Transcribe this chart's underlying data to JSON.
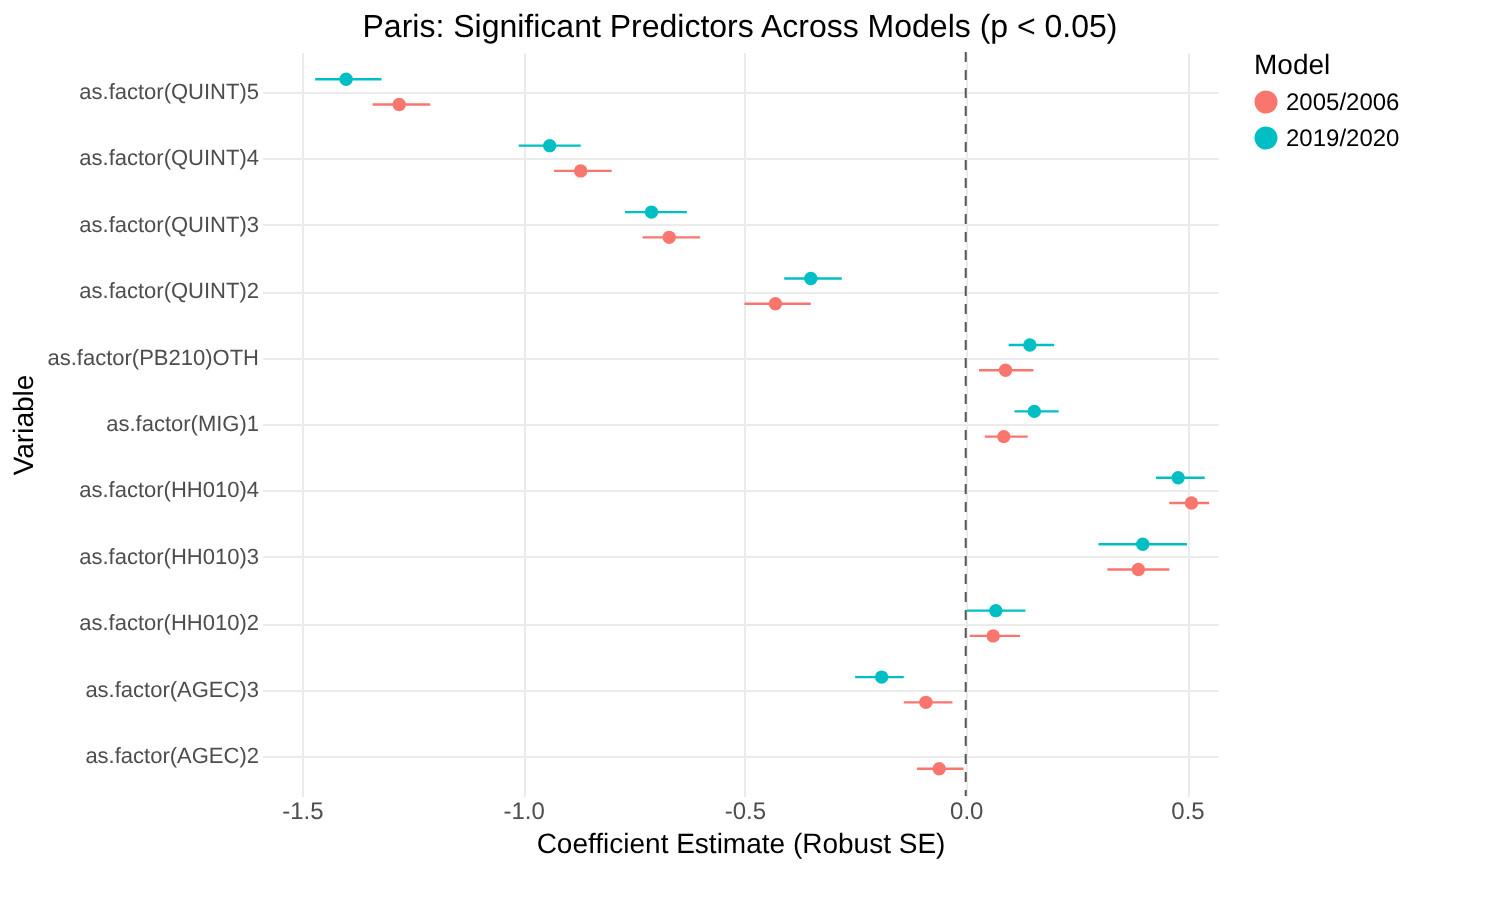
{
  "chart_data": {
    "type": "scatter",
    "title": "Paris: Significant Predictors Across Models (p < 0.05)",
    "xlabel": "Coefficient Estimate (Robust SE)",
    "ylabel": "Variable",
    "legend_title": "Model",
    "orientation": "horizontal",
    "categories": [
      "as.factor(QUINT)5",
      "as.factor(QUINT)4",
      "as.factor(QUINT)3",
      "as.factor(QUINT)2",
      "as.factor(PB210)OTH",
      "as.factor(MIG)1",
      "as.factor(HH010)4",
      "as.factor(HH010)3",
      "as.factor(HH010)2",
      "as.factor(AGEC)3",
      "as.factor(AGEC)2"
    ],
    "series": [
      {
        "name": "2005/2006",
        "color": "#f8766d",
        "values": [
          -1.28,
          -0.87,
          -0.67,
          -0.43,
          0.09,
          0.086,
          0.51,
          0.39,
          0.062,
          -0.09,
          -0.06
        ],
        "errors": [
          [
            -1.34,
            -1.21
          ],
          [
            -0.93,
            -0.8
          ],
          [
            -0.73,
            -0.6
          ],
          [
            -0.5,
            -0.35
          ],
          [
            0.03,
            0.153
          ],
          [
            0.043,
            0.14
          ],
          [
            0.46,
            0.55
          ],
          [
            0.32,
            0.46
          ],
          [
            0.009,
            0.123
          ],
          [
            -0.14,
            -0.03
          ],
          [
            -0.11,
            -0.005
          ]
        ]
      },
      {
        "name": "2019/2020",
        "color": "#00bfc4",
        "values": [
          -1.4,
          -0.94,
          -0.71,
          -0.35,
          0.145,
          0.155,
          0.48,
          0.4,
          0.068,
          -0.19,
          null
        ],
        "errors": [
          [
            -1.47,
            -1.32
          ],
          [
            -1.01,
            -0.87
          ],
          [
            -0.77,
            -0.63
          ],
          [
            -0.41,
            -0.28
          ],
          [
            0.097,
            0.2
          ],
          [
            0.11,
            0.21
          ],
          [
            0.43,
            0.54
          ],
          [
            0.3,
            0.5
          ],
          [
            0.003,
            0.135
          ],
          [
            -0.25,
            -0.14
          ],
          null
        ]
      }
    ],
    "xlim": [
      -1.59,
      0.57
    ],
    "xticks": [
      {
        "value": -1.5,
        "label": "-1.5"
      },
      {
        "value": -1,
        "label": "-1.0"
      },
      {
        "value": -0.5,
        "label": "-0.5"
      },
      {
        "value": 0,
        "label": "0.0"
      },
      {
        "value": 0.5,
        "label": "0.5"
      }
    ],
    "grid": true,
    "legend": "right",
    "marker": "circle",
    "ref_lines": [
      {
        "axis": "x",
        "value": 0,
        "line_style": "dashed",
        "color": "#555555"
      }
    ]
  }
}
